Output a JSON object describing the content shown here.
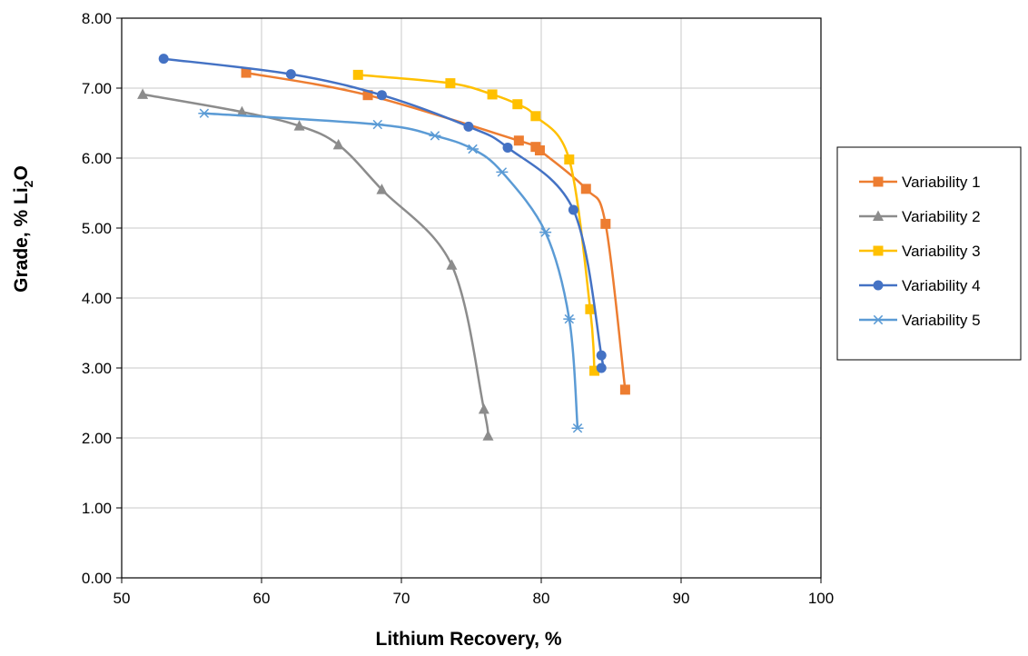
{
  "chart_data": {
    "type": "scatter",
    "title": "",
    "xlabel": "Lithium Recovery, %",
    "ylabel_main": "Grade, % Li",
    "ylabel_sub": "2",
    "ylabel_end": "O",
    "xlim": [
      50,
      100
    ],
    "ylim": [
      0,
      8
    ],
    "xticks": [
      "50",
      "60",
      "70",
      "80",
      "90",
      "100"
    ],
    "yticks": [
      "0.00",
      "1.00",
      "2.00",
      "3.00",
      "4.00",
      "5.00",
      "6.00",
      "7.00",
      "8.00"
    ],
    "grid": true,
    "legend_position": "right",
    "series": [
      {
        "name": "Variability 1",
        "color": "#ED7D31",
        "marker": "square",
        "points": [
          [
            58.9,
            7.22
          ],
          [
            67.6,
            6.9
          ],
          [
            78.4,
            6.25
          ],
          [
            79.6,
            6.16
          ],
          [
            79.9,
            6.11
          ],
          [
            83.2,
            5.56
          ],
          [
            84.6,
            5.06
          ],
          [
            86.0,
            2.69
          ]
        ]
      },
      {
        "name": "Variability 2",
        "color": "#8C8C8C",
        "marker": "triangle",
        "points": [
          [
            51.5,
            6.91
          ],
          [
            58.6,
            6.66
          ],
          [
            62.7,
            6.46
          ],
          [
            65.5,
            6.19
          ],
          [
            68.6,
            5.55
          ],
          [
            73.6,
            4.47
          ],
          [
            75.9,
            2.41
          ],
          [
            76.2,
            2.03
          ]
        ]
      },
      {
        "name": "Variability 3",
        "color": "#FFC000",
        "marker": "square",
        "points": [
          [
            66.9,
            7.19
          ],
          [
            73.5,
            7.07
          ],
          [
            76.5,
            6.91
          ],
          [
            78.3,
            6.77
          ],
          [
            79.6,
            6.6
          ],
          [
            82.0,
            5.98
          ],
          [
            83.5,
            3.84
          ],
          [
            83.8,
            2.96
          ]
        ]
      },
      {
        "name": "Variability 4",
        "color": "#4472C4",
        "marker": "circle",
        "points": [
          [
            53.0,
            7.42
          ],
          [
            62.1,
            7.2
          ],
          [
            68.6,
            6.9
          ],
          [
            74.8,
            6.45
          ],
          [
            77.6,
            6.15
          ],
          [
            82.3,
            5.26
          ],
          [
            84.3,
            3.18
          ],
          [
            84.3,
            3.0
          ]
        ]
      },
      {
        "name": "Variability 5",
        "color": "#5B9BD5",
        "marker": "star",
        "points": [
          [
            55.9,
            6.64
          ],
          [
            68.3,
            6.48
          ],
          [
            72.4,
            6.32
          ],
          [
            75.1,
            6.13
          ],
          [
            77.2,
            5.8
          ],
          [
            80.3,
            4.94
          ],
          [
            82.0,
            3.7
          ],
          [
            82.6,
            2.14
          ]
        ]
      }
    ]
  }
}
